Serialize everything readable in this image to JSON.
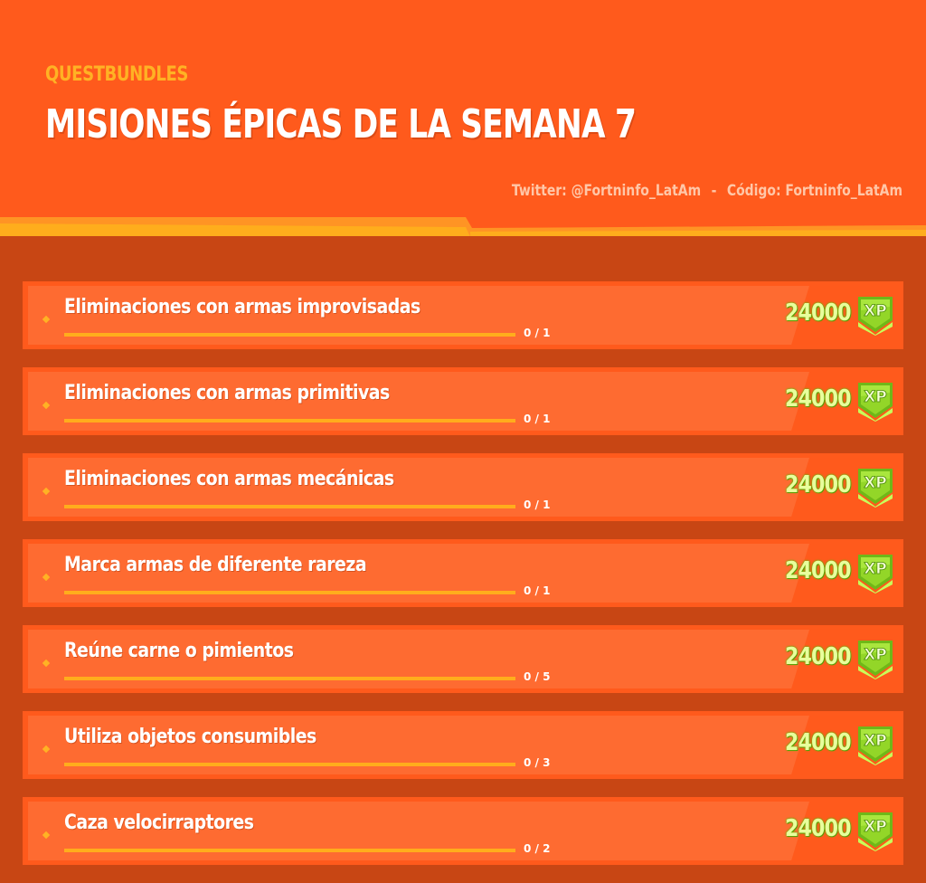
{
  "header": {
    "supertitle": "QUESTBUNDLES",
    "title": "MISIONES ÉPICAS DE LA SEMANA 7",
    "credits": {
      "twitter": "Twitter: @Fortninfo_LatAm",
      "separator": "-",
      "code": "Código: Fortninfo_LatAm"
    }
  },
  "colors": {
    "header_bg": "#ff5a1c",
    "page_bg": "#c84614",
    "accent_yellow": "#ffb224",
    "row_panel": "#fe6b31",
    "reward_text": "#e8ff9c",
    "xp_badge_green": "#8fd21e"
  },
  "reward_icon": "xp-badge-icon",
  "reward_icon_label": "XP",
  "quests": [
    {
      "name": "Eliminaciones con armas improvisadas",
      "progress_text": "0 / 1",
      "progress_fraction": 0,
      "reward": "24000"
    },
    {
      "name": "Eliminaciones con armas primitivas",
      "progress_text": "0 / 1",
      "progress_fraction": 0,
      "reward": "24000"
    },
    {
      "name": "Eliminaciones con armas mecánicas",
      "progress_text": "0 / 1",
      "progress_fraction": 0,
      "reward": "24000"
    },
    {
      "name": "Marca armas de diferente rareza",
      "progress_text": "0 / 1",
      "progress_fraction": 0,
      "reward": "24000"
    },
    {
      "name": "Reúne carne o pimientos",
      "progress_text": "0 / 5",
      "progress_fraction": 0,
      "reward": "24000"
    },
    {
      "name": "Utiliza objetos consumibles",
      "progress_text": "0 / 3",
      "progress_fraction": 0,
      "reward": "24000"
    },
    {
      "name": "Caza velocirraptores",
      "progress_text": "0 / 2",
      "progress_fraction": 0,
      "reward": "24000"
    }
  ]
}
